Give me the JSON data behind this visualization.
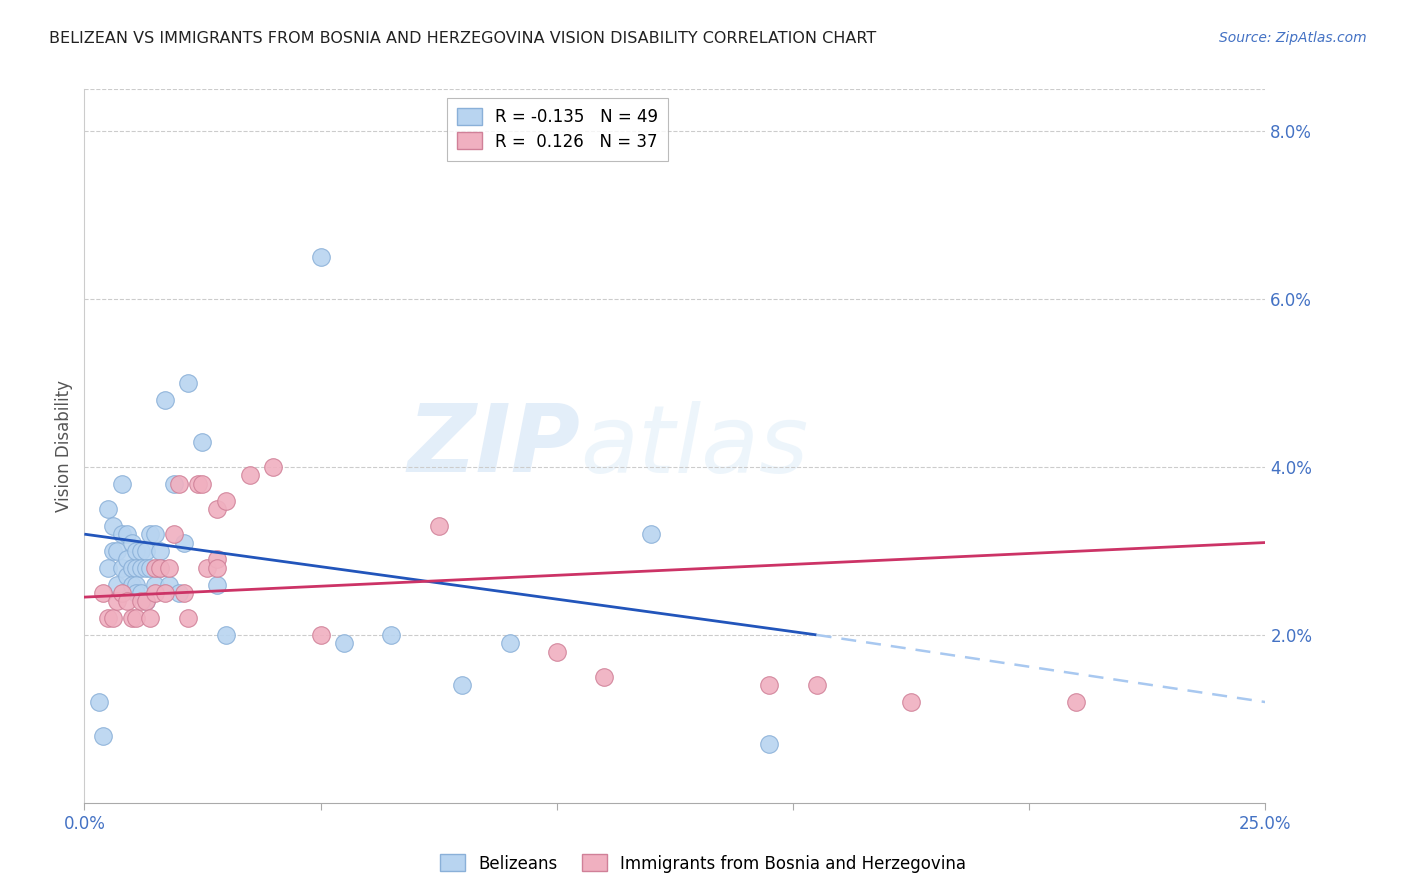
{
  "title": "BELIZEAN VS IMMIGRANTS FROM BOSNIA AND HERZEGOVINA VISION DISABILITY CORRELATION CHART",
  "source": "Source: ZipAtlas.com",
  "ylabel": "Vision Disability",
  "xlim": [
    0.0,
    0.25
  ],
  "ylim": [
    0.0,
    0.085
  ],
  "watermark": "ZIPatlas",
  "series_blue": {
    "color": "#b8d4f0",
    "edge_color": "#8ab0d8",
    "x": [
      0.003,
      0.004,
      0.005,
      0.005,
      0.006,
      0.006,
      0.007,
      0.007,
      0.008,
      0.008,
      0.008,
      0.009,
      0.009,
      0.009,
      0.01,
      0.01,
      0.01,
      0.011,
      0.011,
      0.011,
      0.011,
      0.012,
      0.012,
      0.012,
      0.013,
      0.013,
      0.013,
      0.014,
      0.014,
      0.015,
      0.015,
      0.016,
      0.016,
      0.017,
      0.018,
      0.019,
      0.02,
      0.021,
      0.022,
      0.025,
      0.028,
      0.03,
      0.05,
      0.055,
      0.065,
      0.08,
      0.09,
      0.12,
      0.145
    ],
    "y": [
      0.012,
      0.008,
      0.035,
      0.028,
      0.033,
      0.03,
      0.03,
      0.026,
      0.038,
      0.028,
      0.032,
      0.032,
      0.029,
      0.027,
      0.031,
      0.028,
      0.026,
      0.03,
      0.028,
      0.026,
      0.025,
      0.03,
      0.028,
      0.025,
      0.03,
      0.028,
      0.024,
      0.032,
      0.028,
      0.032,
      0.026,
      0.03,
      0.028,
      0.048,
      0.026,
      0.038,
      0.025,
      0.031,
      0.05,
      0.043,
      0.026,
      0.02,
      0.065,
      0.019,
      0.02,
      0.014,
      0.019,
      0.032,
      0.007
    ]
  },
  "series_pink": {
    "color": "#f0b0c0",
    "edge_color": "#d08098",
    "x": [
      0.004,
      0.005,
      0.006,
      0.007,
      0.008,
      0.009,
      0.01,
      0.011,
      0.012,
      0.013,
      0.014,
      0.015,
      0.015,
      0.016,
      0.017,
      0.018,
      0.019,
      0.02,
      0.021,
      0.022,
      0.024,
      0.025,
      0.026,
      0.028,
      0.028,
      0.028,
      0.03,
      0.035,
      0.04,
      0.05,
      0.075,
      0.1,
      0.11,
      0.145,
      0.155,
      0.175,
      0.21
    ],
    "y": [
      0.025,
      0.022,
      0.022,
      0.024,
      0.025,
      0.024,
      0.022,
      0.022,
      0.024,
      0.024,
      0.022,
      0.028,
      0.025,
      0.028,
      0.025,
      0.028,
      0.032,
      0.038,
      0.025,
      0.022,
      0.038,
      0.038,
      0.028,
      0.035,
      0.029,
      0.028,
      0.036,
      0.039,
      0.04,
      0.02,
      0.033,
      0.018,
      0.015,
      0.014,
      0.014,
      0.012,
      0.012
    ]
  },
  "line_blue_solid": {
    "x_start": 0.0,
    "x_end": 0.155,
    "y_start": 0.032,
    "y_end": 0.02,
    "color": "#2255bb"
  },
  "line_blue_dashed": {
    "x_start": 0.155,
    "x_end": 0.25,
    "y_start": 0.02,
    "y_end": 0.012,
    "color": "#a8c8f0"
  },
  "line_pink": {
    "x_start": 0.0,
    "x_end": 0.25,
    "y_start": 0.0245,
    "y_end": 0.031,
    "color": "#cc3366"
  },
  "legend_upper": [
    {
      "label": "R = -0.135   N = 49",
      "facecolor": "#b8d4f0",
      "edgecolor": "#8ab0d8"
    },
    {
      "label": "R =  0.126   N = 37",
      "facecolor": "#f0b0c0",
      "edgecolor": "#d08098"
    }
  ],
  "legend_lower": [
    {
      "label": "Belizeans",
      "facecolor": "#b8d4f0",
      "edgecolor": "#8ab0d8"
    },
    {
      "label": "Immigrants from Bosnia and Herzegovina",
      "facecolor": "#f0b0c0",
      "edgecolor": "#d08098"
    }
  ]
}
